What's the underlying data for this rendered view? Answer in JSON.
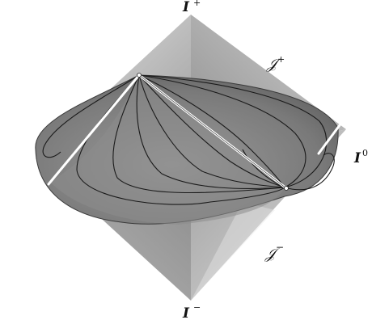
{
  "labels": {
    "i_plus": "I",
    "i_plus_sup": "+",
    "i_minus": "I",
    "i_minus_sup": "−",
    "i_zero": "I",
    "i_zero_sup": "0",
    "scri_plus": "𝒥",
    "scri_plus_sup": "+",
    "scri_minus": "𝒥",
    "scri_minus_sup": "−"
  },
  "colors": {
    "surface_light": "#d8d8d8",
    "surface_mid": "#a8a8a8",
    "surface_dark": "#6e6e6e",
    "disk": "#7d7d7d",
    "curve": "#1a1a1a",
    "geodesic": "#ffffff"
  }
}
